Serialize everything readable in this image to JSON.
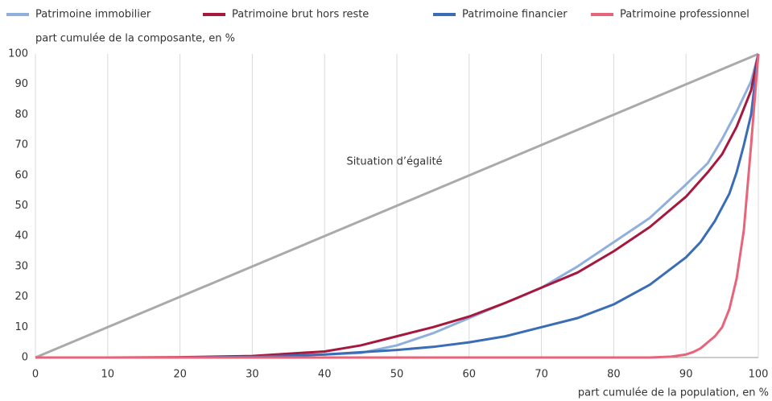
{
  "chart_data": {
    "type": "line",
    "y_axis_label": "part cumulée de la composante, en %",
    "x_axis_label": "part cumulée de la population, en %",
    "annotation": "Situation d’égalité",
    "reference_line": {
      "x": [
        0,
        100
      ],
      "values": [
        0,
        100
      ],
      "color": "#aaaaaa"
    },
    "xlim": [
      0,
      100
    ],
    "ylim": [
      0,
      100
    ],
    "xticks": [
      0,
      10,
      20,
      30,
      40,
      50,
      60,
      70,
      80,
      90,
      100
    ],
    "yticks": [
      0,
      10,
      20,
      30,
      40,
      50,
      60,
      70,
      80,
      90,
      100
    ],
    "grid": "x",
    "series": [
      {
        "name": "Patrimoine immobilier",
        "color": "#8fb0dc",
        "x": [
          0,
          10,
          20,
          30,
          40,
          45,
          50,
          55,
          60,
          65,
          70,
          75,
          80,
          85,
          90,
          93,
          95,
          97,
          98,
          99,
          100
        ],
        "values": [
          0,
          0,
          0,
          0.3,
          1,
          1.5,
          4,
          8,
          13,
          18,
          23,
          30,
          38,
          46,
          57,
          64,
          72,
          81,
          86,
          91,
          100
        ]
      },
      {
        "name": "Patrimoine brut hors reste",
        "color": "#a6193e",
        "x": [
          0,
          10,
          20,
          30,
          40,
          45,
          50,
          55,
          60,
          65,
          70,
          75,
          80,
          85,
          90,
          93,
          95,
          97,
          98,
          99,
          100
        ],
        "values": [
          0,
          0,
          0.1,
          0.5,
          2,
          4,
          7,
          10,
          13.5,
          18,
          23,
          28,
          35,
          43,
          53,
          61,
          67,
          76,
          82,
          88,
          100
        ]
      },
      {
        "name": "Patrimoine financier",
        "color": "#3a6db5",
        "x": [
          0,
          10,
          20,
          30,
          40,
          50,
          55,
          60,
          65,
          70,
          75,
          80,
          85,
          90,
          92,
          94,
          96,
          97,
          98,
          99,
          100
        ],
        "values": [
          0,
          0,
          0,
          0.2,
          1,
          2.5,
          3.5,
          5,
          7,
          10,
          13,
          17.5,
          24,
          33,
          38,
          45,
          54,
          61,
          70,
          80,
          100
        ]
      },
      {
        "name": "Patrimoine professionnel",
        "color": "#e8647a",
        "x": [
          0,
          85,
          88,
          90,
          91,
          92,
          93,
          94,
          95,
          96,
          97,
          98,
          99,
          100
        ],
        "values": [
          0,
          0,
          0.3,
          1,
          1.8,
          3,
          5,
          7,
          10,
          16,
          26,
          42,
          70,
          100
        ]
      }
    ]
  }
}
